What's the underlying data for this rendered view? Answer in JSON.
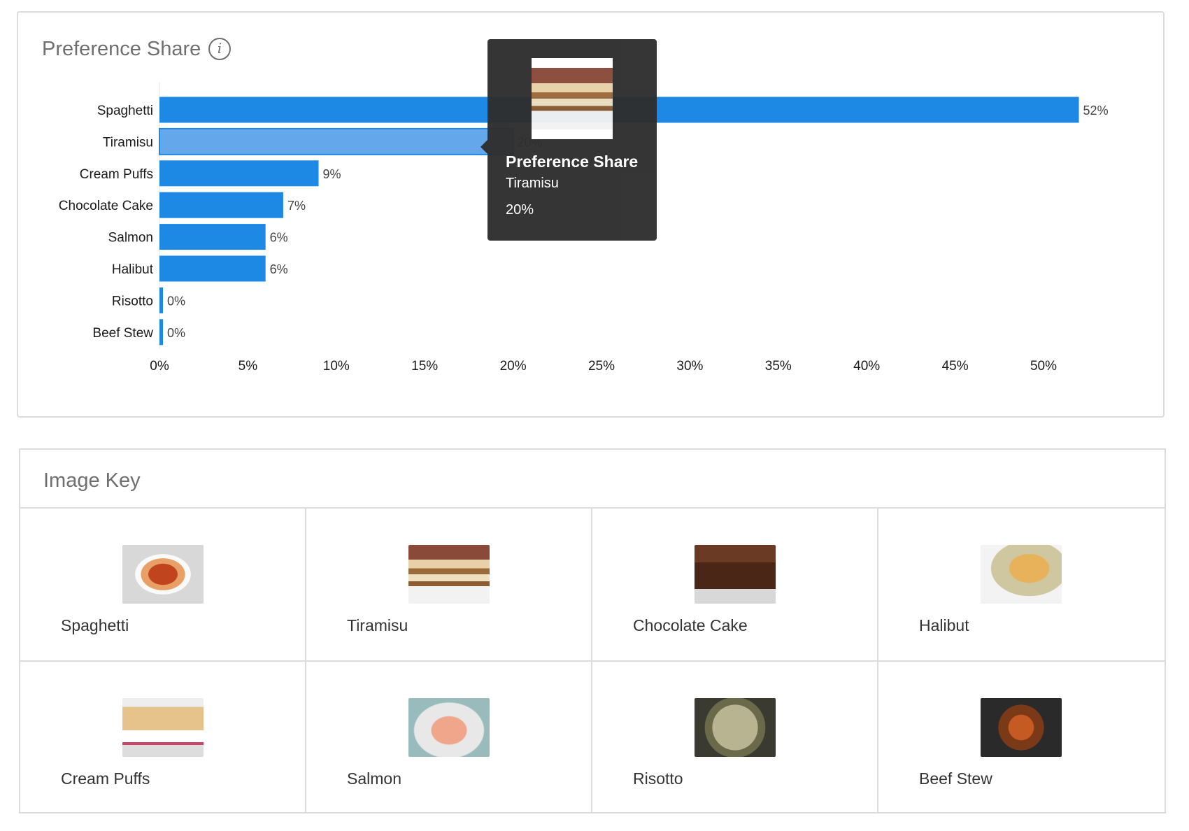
{
  "chart_card": {
    "title": "Preference Share",
    "info_icon": "i"
  },
  "chart_data": {
    "type": "bar",
    "orientation": "horizontal",
    "title": "Preference Share",
    "categories": [
      "Spaghetti",
      "Tiramisu",
      "Cream Puffs",
      "Chocolate Cake",
      "Salmon",
      "Halibut",
      "Risotto",
      "Beef Stew"
    ],
    "values": [
      52,
      20,
      9,
      7,
      6,
      6,
      0,
      0
    ],
    "value_labels": [
      "52%",
      "20%",
      "9%",
      "7%",
      "6%",
      "6%",
      "0%",
      "0%"
    ],
    "xlim": [
      0,
      52
    ],
    "xticks": [
      "0%",
      "5%",
      "10%",
      "15%",
      "20%",
      "25%",
      "30%",
      "35%",
      "40%",
      "45%",
      "50%"
    ],
    "highlighted": "Tiramisu",
    "colors": {
      "bar": "#1e88e5",
      "highlight": "#64a7ea"
    }
  },
  "tooltip": {
    "title": "Preference Share",
    "item": "Tiramisu",
    "value": "20%"
  },
  "image_key": {
    "title": "Image Key",
    "items": [
      {
        "label": "Spaghetti",
        "image": "f-spaghetti"
      },
      {
        "label": "Tiramisu",
        "image": "f-tiramisu"
      },
      {
        "label": "Chocolate Cake",
        "image": "f-cake"
      },
      {
        "label": "Halibut",
        "image": "f-halibut"
      },
      {
        "label": "Cream Puffs",
        "image": "f-puffs"
      },
      {
        "label": "Salmon",
        "image": "f-salmon"
      },
      {
        "label": "Risotto",
        "image": "f-risotto"
      },
      {
        "label": "Beef Stew",
        "image": "f-stew"
      }
    ]
  }
}
